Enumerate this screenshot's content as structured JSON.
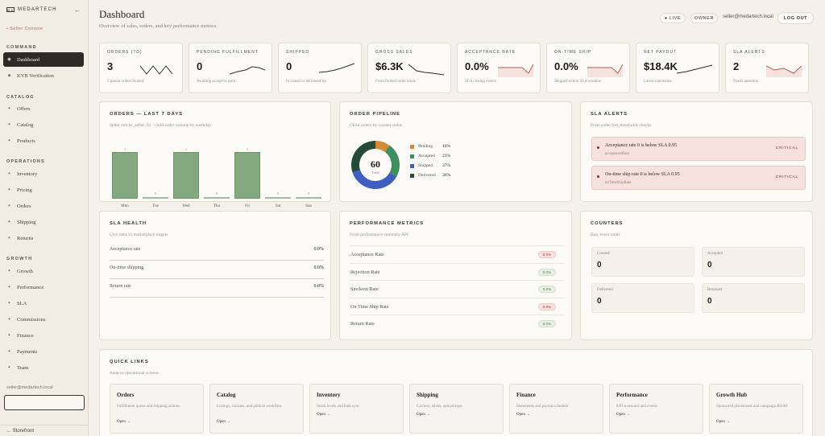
{
  "sidebar": {
    "brand": "MEDARTECH",
    "brand_logo": "MA",
    "collapse_glyph": "←",
    "seller_console": "Seller Console",
    "sections": {
      "command": "COMMAND",
      "catalog": "CATALOG",
      "operations": "OPERATIONS",
      "growth": "GROWTH"
    },
    "items": [
      {
        "label": "Dashboard",
        "glyph": "◉"
      },
      {
        "label": "KYB Verification",
        "glyph": "◆"
      },
      {
        "label": "Offers",
        "glyph": "✦"
      },
      {
        "label": "Catalog",
        "glyph": "✦"
      },
      {
        "label": "Products",
        "glyph": "✦"
      },
      {
        "label": "Inventory",
        "glyph": "✦"
      },
      {
        "label": "Pricing",
        "glyph": "✦"
      },
      {
        "label": "Orders",
        "glyph": "✦"
      },
      {
        "label": "Shipping",
        "glyph": "✦"
      },
      {
        "label": "Returns",
        "glyph": "✦"
      },
      {
        "label": "Growth",
        "glyph": "✦"
      },
      {
        "label": "Performance",
        "glyph": "✦"
      },
      {
        "label": "SLA",
        "glyph": "✦"
      },
      {
        "label": "Commissions",
        "glyph": "✦"
      },
      {
        "label": "Finance",
        "glyph": "✦"
      },
      {
        "label": "Payments",
        "glyph": "✦"
      },
      {
        "label": "Team",
        "glyph": "✦"
      }
    ],
    "email": "seller@medartech.local",
    "footer": "← Storefront"
  },
  "header": {
    "title": "Dashboard",
    "subtitle": "Overview of sales, orders, and key performance metrics.",
    "live": "● LIVE",
    "owner": "OWNER",
    "email": "seller@medartech.local",
    "logout": "LOG OUT"
  },
  "kpis": [
    {
      "label": "ORDERS (7D)",
      "value": "3",
      "desc": "3 parent orders funded"
    },
    {
      "label": "PENDING FULFILLMENT",
      "value": "0",
      "desc": "Awaiting accept or pack"
    },
    {
      "label": "SHIPPED",
      "value": "0",
      "desc": "In transit or delivered/tip"
    },
    {
      "label": "GROSS SALES",
      "value": "$6.3K",
      "desc": "From funded order totals"
    },
    {
      "label": "ACCEPTANCE RATE",
      "value": "0.0%",
      "desc": "SLA closing events"
    },
    {
      "label": "ON-TIME SHIP",
      "value": "0.0%",
      "desc": "Shipped within SLA window"
    },
    {
      "label": "NET PAYOUT",
      "value": "$18.4K",
      "desc": "Latest statements"
    },
    {
      "label": "SLA ALERTS",
      "value": "2",
      "desc": "Needs attention"
    }
  ],
  "orders_chart": {
    "title": "ORDERS — LAST 7 DAYS",
    "subtitle": "Seller stricks_seller_01 · child-order volume by weekday",
    "chart_data": {
      "type": "bar",
      "categories": [
        "Mon",
        "Tue",
        "Wed",
        "Thu",
        "Fri",
        "Sat",
        "Sun"
      ],
      "values": [
        1,
        0,
        1,
        0,
        1,
        0,
        0
      ],
      "value_labels": [
        "1",
        "0",
        "1",
        "0",
        "1",
        "0",
        "0"
      ],
      "ylim": [
        0,
        1
      ]
    }
  },
  "pipeline": {
    "title": "ORDER PIPELINE",
    "subtitle": "Child orders by current status",
    "center_value": "60",
    "center_label": "Total",
    "chart_data": {
      "type": "pie",
      "categories": [
        "Pending",
        "Accepted",
        "Shipped",
        "Delivered"
      ],
      "values": [
        10,
        23,
        37,
        30
      ],
      "labels": [
        "10%",
        "23%",
        "37%",
        "30%"
      ],
      "colors": [
        "#d08a3a",
        "#3f8e5f",
        "#3e5fc0",
        "#234a3a"
      ]
    }
  },
  "sla_alerts": {
    "title": "SLA ALERTS",
    "subtitle": "From seller.fod_thresholds checks",
    "items": [
      {
        "text": "Acceptance rate 0 is below SLA 0.95",
        "sub": "acceptanceRate",
        "severity": "CRITICAL"
      },
      {
        "text": "On-time ship rate 0 is below SLA 0.95",
        "sub": "onTimeShipRate",
        "severity": "CRITICAL"
      }
    ]
  },
  "sla_health": {
    "title": "SLA HEALTH",
    "subtitle": "Live rates vs marketplace targets",
    "rows": [
      {
        "label": "Acceptance rate",
        "value": "0.0%",
        "fill": 0
      },
      {
        "label": "On-time shipping",
        "value": "0.0%",
        "fill": 0
      },
      {
        "label": "Return rate",
        "value": "0.0%",
        "fill": 0
      }
    ]
  },
  "perf_metrics": {
    "title": "PERFORMANCE METRICS",
    "subtitle": "From performance summary API",
    "rows": [
      {
        "label": "Acceptance Rate",
        "value": "0.0%",
        "status": "bad"
      },
      {
        "label": "Rejection Rate",
        "value": "0.0%",
        "status": "ok"
      },
      {
        "label": "Stockout Rate",
        "value": "0.0%",
        "status": "ok"
      },
      {
        "label": "On Time Ship Rate",
        "value": "0.0%",
        "status": "bad"
      },
      {
        "label": "Return Rate",
        "value": "0.0%",
        "status": "ok"
      }
    ]
  },
  "counters": {
    "title": "COUNTERS",
    "subtitle": "Raw event totals",
    "items": [
      {
        "label": "Created",
        "value": "0"
      },
      {
        "label": "Accepted",
        "value": "0"
      },
      {
        "label": "Delivered",
        "value": "0"
      },
      {
        "label": "Returned",
        "value": "0"
      }
    ]
  },
  "quick_links": {
    "title": "QUICK LINKS",
    "subtitle": "Jump to operational screens",
    "open_label": "Open →",
    "items": [
      {
        "title": "Orders",
        "desc": "Fulfillment queue and shipping actions"
      },
      {
        "title": "Catalog",
        "desc": "Listings, variants, and publish workflow"
      },
      {
        "title": "Inventory",
        "desc": "Stock levels and bulk sync"
      },
      {
        "title": "Shipping",
        "desc": "Carriers, labels, and pickups"
      },
      {
        "title": "Finance",
        "desc": "Statements and payout schedule"
      },
      {
        "title": "Performance",
        "desc": "KPI scorecard and events"
      },
      {
        "title": "Growth Hub",
        "desc": "Sponsored placements and campaign ROAS"
      }
    ]
  },
  "colors": {
    "accent_dark": "#2f2a25",
    "bar_green": "#84a87f",
    "alert_bg": "#f6e1df",
    "critical": "#8b2a24"
  }
}
